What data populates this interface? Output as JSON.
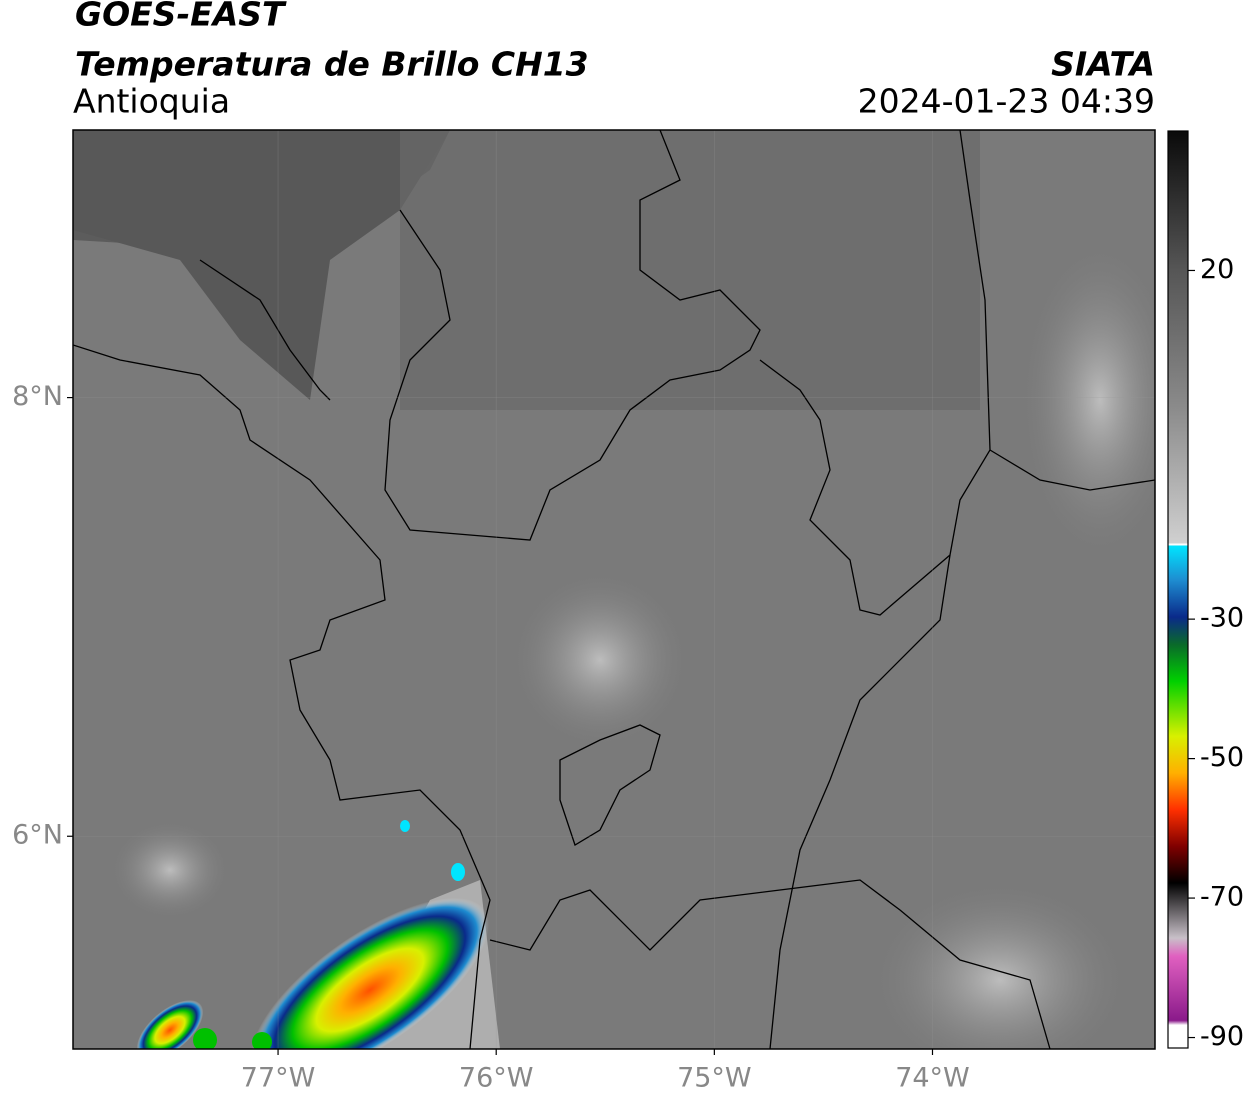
{
  "header": {
    "title": "GOES-EAST",
    "subtitle": "Temperatura de Brillo CH13",
    "region": "Antioquia",
    "source": "SIATA",
    "datetime": "2024-01-23 04:39"
  },
  "map": {
    "lonlim": [
      -77.94,
      -72.98
    ],
    "latlim": [
      5.03,
      9.22
    ],
    "lonticks": [
      {
        "value": -77,
        "label": "77°W"
      },
      {
        "value": -76,
        "label": "76°W"
      },
      {
        "value": -75,
        "label": "75°W"
      },
      {
        "value": -74,
        "label": "74°W"
      }
    ],
    "latticks": [
      {
        "value": 8,
        "label": "8°N"
      },
      {
        "value": 6,
        "label": "6°N"
      }
    ]
  },
  "colorbar": {
    "lim": [
      -91.5,
      40
    ],
    "ticks": [
      20,
      -30,
      -50,
      -70,
      -90
    ]
  }
}
